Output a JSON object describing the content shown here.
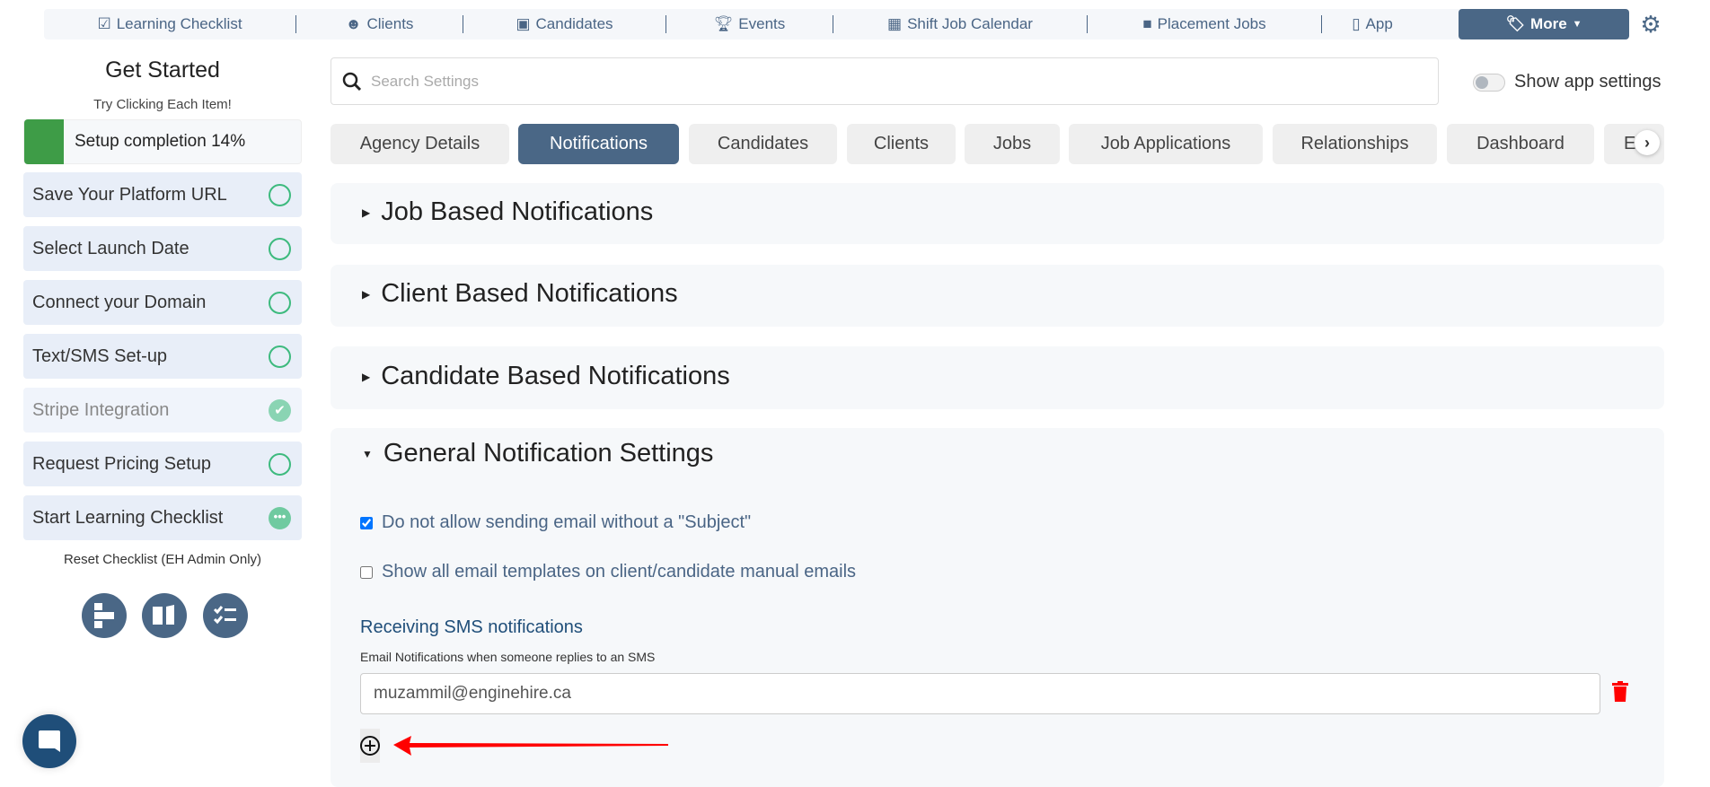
{
  "topnav": {
    "items": [
      {
        "label": "Learning Checklist",
        "icon": "checklist-icon"
      },
      {
        "label": "Clients",
        "icon": "clients-icon"
      },
      {
        "label": "Candidates",
        "icon": "badge-icon"
      },
      {
        "label": "Events",
        "icon": "trophy-icon"
      },
      {
        "label": "Shift Job Calendar",
        "icon": "calendar-icon"
      },
      {
        "label": "Placement Jobs",
        "icon": "briefcase-icon"
      },
      {
        "label": "App",
        "icon": "mobile-icon"
      }
    ],
    "more_label": "More"
  },
  "sidebar": {
    "title": "Get Started",
    "subtitle": "Try Clicking Each Item!",
    "progress_label": "Setup completion 14%",
    "progress_percent": 14,
    "progress_color": "#3e9c47",
    "items": [
      {
        "label": "Save Your Platform URL",
        "status": "todo"
      },
      {
        "label": "Select Launch Date",
        "status": "todo"
      },
      {
        "label": "Connect your Domain",
        "status": "todo"
      },
      {
        "label": "Text/SMS Set-up",
        "status": "todo"
      },
      {
        "label": "Stripe Integration",
        "status": "done"
      },
      {
        "label": "Request Pricing Setup",
        "status": "todo"
      },
      {
        "label": "Start Learning Checklist",
        "status": "in-progress"
      }
    ],
    "reset_label": "Reset Checklist (EH Admin Only)"
  },
  "search": {
    "placeholder": "Search Settings"
  },
  "toggle": {
    "label": "Show app settings",
    "on": false
  },
  "tabs": [
    "Agency Details",
    "Notifications",
    "Candidates",
    "Clients",
    "Jobs",
    "Job Applications",
    "Relationships",
    "Dashboard",
    "E"
  ],
  "active_tab": "Notifications",
  "panels": [
    "Job Based Notifications",
    "Client Based Notifications",
    "Candidate Based Notifications",
    "General Notification Settings"
  ],
  "general": {
    "opt1": {
      "label": "Do not allow sending email without a \"Subject\"",
      "checked": true
    },
    "opt2": {
      "label": "Show all email templates on client/candidate manual emails",
      "checked": false
    },
    "sms_heading": "Receiving SMS notifications",
    "sms_help": "Email Notifications when someone replies to an SMS",
    "email_value": "muzammil@enginehire.ca"
  },
  "colors": {
    "primary": "#4a6786",
    "success": "#3dba7e",
    "danger": "#ff0000",
    "chat": "#1f4e79"
  }
}
